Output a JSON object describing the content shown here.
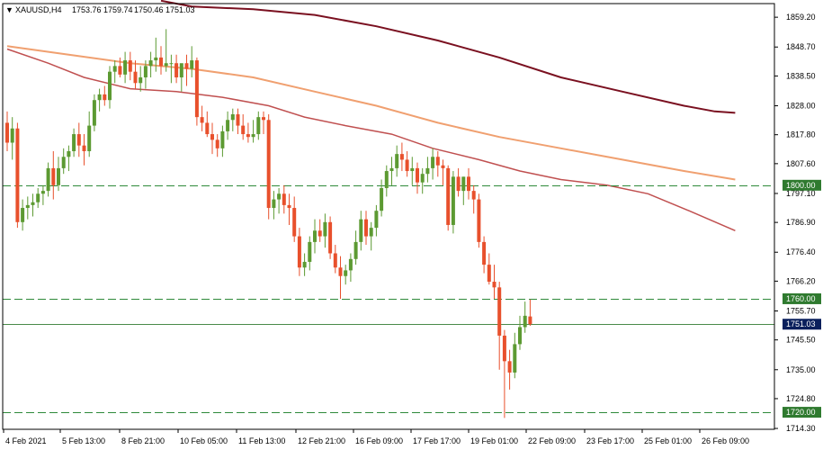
{
  "header": {
    "symbol": "XAUUSD,H4",
    "open": "1753.76",
    "high": "1759.74",
    "low": "1750.46",
    "close": "1751.03"
  },
  "colors": {
    "background": "#ffffff",
    "axis": "#000000",
    "bull": "#5c9a32",
    "bear": "#e8502c",
    "level_line": "#2f8a3a",
    "price_line": "#4a8a4a",
    "ma_fast": "#c05050",
    "ma_mid": "#f0a070",
    "ma_slow": "#7a1020",
    "tag_green": "#2f7a2f",
    "tag_navy": "#0a1f5c"
  },
  "chart_data": {
    "type": "candlestick",
    "symbol": "XAUUSD",
    "timeframe": "H4",
    "ylim": [
      1714,
      1864
    ],
    "y_ticks": [
      "1859.20",
      "1848.70",
      "1838.50",
      "1828.00",
      "1817.80",
      "1807.60",
      "1797.10",
      "1786.90",
      "1776.40",
      "1766.20",
      "1755.70",
      "1745.50",
      "1735.00",
      "1724.80",
      "1714.30"
    ],
    "x_ticks": [
      "4 Feb 2021",
      "5 Feb 13:00",
      "8 Feb 21:00",
      "10 Feb 05:00",
      "11 Feb 13:00",
      "12 Feb 21:00",
      "16 Feb 09:00",
      "17 Feb 17:00",
      "19 Feb 01:00",
      "22 Feb 09:00",
      "23 Feb 17:00",
      "25 Feb 01:00",
      "26 Feb 09:00"
    ],
    "levels": [
      {
        "value": 1800.0,
        "label": "1800.00",
        "style": "dashed"
      },
      {
        "value": 1760.0,
        "label": "1760.00",
        "style": "dashed"
      },
      {
        "value": 1720.0,
        "label": "1720.00",
        "style": "dashed"
      }
    ],
    "current_price": {
      "value": 1751.03,
      "label": "1751.03"
    },
    "candles": [
      [
        1822,
        1826,
        1812,
        1815
      ],
      [
        1815,
        1824,
        1809,
        1820
      ],
      [
        1820,
        1822,
        1785,
        1787
      ],
      [
        1787,
        1795,
        1784,
        1792
      ],
      [
        1792,
        1796,
        1788,
        1793
      ],
      [
        1793,
        1797,
        1789,
        1794
      ],
      [
        1794,
        1799,
        1792,
        1797
      ],
      [
        1797,
        1800,
        1793,
        1798
      ],
      [
        1798,
        1808,
        1796,
        1806
      ],
      [
        1806,
        1812,
        1795,
        1800
      ],
      [
        1800,
        1810,
        1798,
        1806
      ],
      [
        1806,
        1813,
        1804,
        1810
      ],
      [
        1810,
        1814,
        1805,
        1812
      ],
      [
        1812,
        1820,
        1810,
        1818
      ],
      [
        1818,
        1822,
        1810,
        1814
      ],
      [
        1814,
        1818,
        1807,
        1812
      ],
      [
        1812,
        1826,
        1810,
        1821
      ],
      [
        1821,
        1832,
        1819,
        1830
      ],
      [
        1830,
        1834,
        1826,
        1832
      ],
      [
        1832,
        1835,
        1828,
        1830
      ],
      [
        1830,
        1842,
        1827,
        1840
      ],
      [
        1840,
        1844,
        1836,
        1842
      ],
      [
        1842,
        1845,
        1838,
        1839
      ],
      [
        1839,
        1847,
        1836,
        1844
      ],
      [
        1844,
        1847,
        1837,
        1840
      ],
      [
        1840,
        1844,
        1834,
        1836
      ],
      [
        1836,
        1842,
        1833,
        1838
      ],
      [
        1838,
        1844,
        1834,
        1842
      ],
      [
        1842,
        1847,
        1838,
        1844
      ],
      [
        1844,
        1852,
        1840,
        1845
      ],
      [
        1845,
        1849,
        1839,
        1842
      ],
      [
        1842,
        1855,
        1840,
        1843
      ],
      [
        1843,
        1846,
        1836,
        1843
      ],
      [
        1843,
        1846,
        1836,
        1838
      ],
      [
        1838,
        1842,
        1833,
        1843
      ],
      [
        1843,
        1846,
        1835,
        1841
      ],
      [
        1841,
        1849,
        1838,
        1844
      ],
      [
        1844,
        1845,
        1821,
        1824
      ],
      [
        1824,
        1828,
        1819,
        1822
      ],
      [
        1822,
        1826,
        1817,
        1818
      ],
      [
        1818,
        1822,
        1811,
        1816
      ],
      [
        1816,
        1818,
        1810,
        1813
      ],
      [
        1813,
        1821,
        1810,
        1819
      ],
      [
        1819,
        1826,
        1816,
        1823
      ],
      [
        1823,
        1827,
        1819,
        1825
      ],
      [
        1825,
        1827,
        1818,
        1821
      ],
      [
        1821,
        1825,
        1816,
        1818
      ],
      [
        1818,
        1822,
        1815,
        1817
      ],
      [
        1817,
        1823,
        1815,
        1818
      ],
      [
        1818,
        1826,
        1816,
        1824
      ],
      [
        1824,
        1826,
        1818,
        1823
      ],
      [
        1823,
        1825,
        1788,
        1792
      ],
      [
        1792,
        1798,
        1788,
        1795
      ],
      [
        1795,
        1799,
        1790,
        1797
      ],
      [
        1797,
        1800,
        1790,
        1793
      ],
      [
        1793,
        1797,
        1786,
        1792
      ],
      [
        1792,
        1796,
        1780,
        1782
      ],
      [
        1782,
        1785,
        1768,
        1771
      ],
      [
        1771,
        1776,
        1768,
        1773
      ],
      [
        1773,
        1782,
        1770,
        1780
      ],
      [
        1780,
        1788,
        1776,
        1784
      ],
      [
        1784,
        1788,
        1780,
        1782
      ],
      [
        1782,
        1790,
        1778,
        1787
      ],
      [
        1787,
        1789,
        1774,
        1776
      ],
      [
        1776,
        1779,
        1769,
        1771
      ],
      [
        1771,
        1775,
        1760,
        1768
      ],
      [
        1768,
        1772,
        1765,
        1770
      ],
      [
        1770,
        1776,
        1766,
        1774
      ],
      [
        1774,
        1784,
        1772,
        1780
      ],
      [
        1780,
        1791,
        1777,
        1788
      ],
      [
        1788,
        1791,
        1779,
        1782
      ],
      [
        1782,
        1787,
        1777,
        1785
      ],
      [
        1785,
        1793,
        1782,
        1791
      ],
      [
        1791,
        1802,
        1789,
        1799
      ],
      [
        1799,
        1807,
        1796,
        1805
      ],
      [
        1805,
        1810,
        1800,
        1806
      ],
      [
        1806,
        1814,
        1803,
        1811
      ],
      [
        1811,
        1815,
        1805,
        1809
      ],
      [
        1809,
        1812,
        1803,
        1805
      ],
      [
        1805,
        1810,
        1800,
        1806
      ],
      [
        1806,
        1808,
        1797,
        1801
      ],
      [
        1801,
        1806,
        1797,
        1804
      ],
      [
        1804,
        1810,
        1801,
        1806
      ],
      [
        1806,
        1813,
        1802,
        1810
      ],
      [
        1810,
        1812,
        1803,
        1807
      ],
      [
        1807,
        1809,
        1800,
        1806
      ],
      [
        1806,
        1807,
        1784,
        1786
      ],
      [
        1786,
        1805,
        1783,
        1803
      ],
      [
        1803,
        1806,
        1796,
        1798
      ],
      [
        1798,
        1803,
        1793,
        1803
      ],
      [
        1803,
        1806,
        1795,
        1798
      ],
      [
        1798,
        1800,
        1790,
        1795
      ],
      [
        1795,
        1797,
        1778,
        1780
      ],
      [
        1780,
        1782,
        1769,
        1772
      ],
      [
        1772,
        1776,
        1765,
        1766
      ],
      [
        1766,
        1772,
        1760,
        1764
      ],
      [
        1764,
        1766,
        1735,
        1747
      ],
      [
        1747,
        1749,
        1718,
        1738
      ],
      [
        1738,
        1742,
        1728,
        1734
      ],
      [
        1734,
        1748,
        1732,
        1744
      ],
      [
        1744,
        1754,
        1742,
        1750
      ],
      [
        1750,
        1759,
        1748,
        1754
      ],
      [
        1753.76,
        1759.74,
        1750.46,
        1751.03
      ]
    ],
    "ma_fast": [
      [
        0,
        1848
      ],
      [
        8,
        1843
      ],
      [
        15,
        1838
      ],
      [
        24,
        1834
      ],
      [
        33,
        1833
      ],
      [
        42,
        1831
      ],
      [
        51,
        1828
      ],
      [
        58,
        1824
      ],
      [
        66,
        1821
      ],
      [
        75,
        1818
      ],
      [
        83,
        1813
      ],
      [
        92,
        1809
      ],
      [
        100,
        1805
      ],
      [
        108,
        1802
      ],
      [
        117,
        1800
      ],
      [
        125,
        1797
      ],
      [
        133,
        1791
      ],
      [
        142,
        1784
      ]
    ],
    "ma_mid": [
      [
        0,
        1849
      ],
      [
        12,
        1846
      ],
      [
        24,
        1843
      ],
      [
        36,
        1841
      ],
      [
        48,
        1838
      ],
      [
        60,
        1833
      ],
      [
        72,
        1828
      ],
      [
        84,
        1822
      ],
      [
        96,
        1817
      ],
      [
        108,
        1813
      ],
      [
        120,
        1809
      ],
      [
        132,
        1805
      ],
      [
        142,
        1802
      ]
    ],
    "ma_slow": [
      [
        30,
        1865
      ],
      [
        36,
        1863
      ],
      [
        48,
        1862
      ],
      [
        60,
        1860
      ],
      [
        72,
        1856
      ],
      [
        84,
        1851
      ],
      [
        96,
        1845
      ],
      [
        108,
        1838
      ],
      [
        120,
        1833
      ],
      [
        132,
        1828
      ],
      [
        138,
        1826
      ],
      [
        142,
        1825.5
      ]
    ],
    "grid": false
  }
}
